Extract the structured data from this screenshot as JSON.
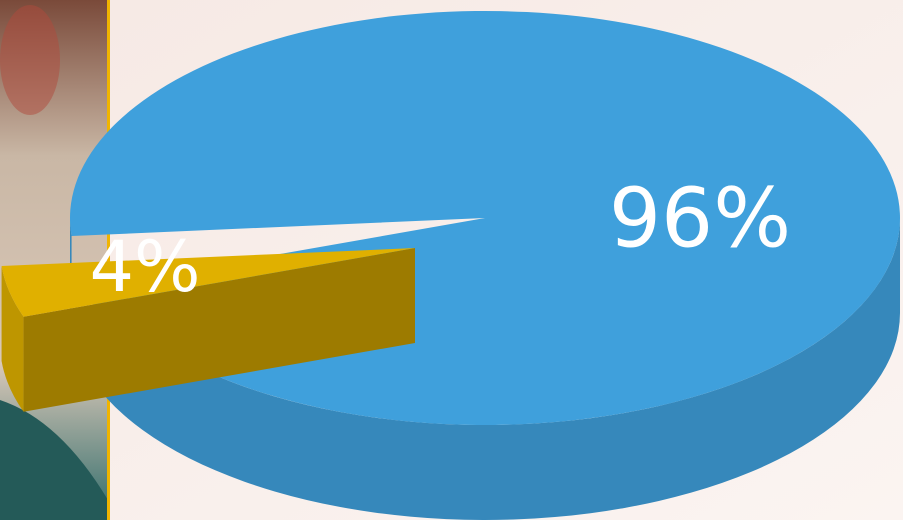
{
  "chart_data": {
    "type": "pie",
    "categories": [
      null,
      null
    ],
    "values": [
      96,
      4
    ],
    "value_labels": [
      "96%",
      "4%"
    ],
    "colors": [
      "#3fa0dc",
      "#e0b000"
    ]
  }
}
